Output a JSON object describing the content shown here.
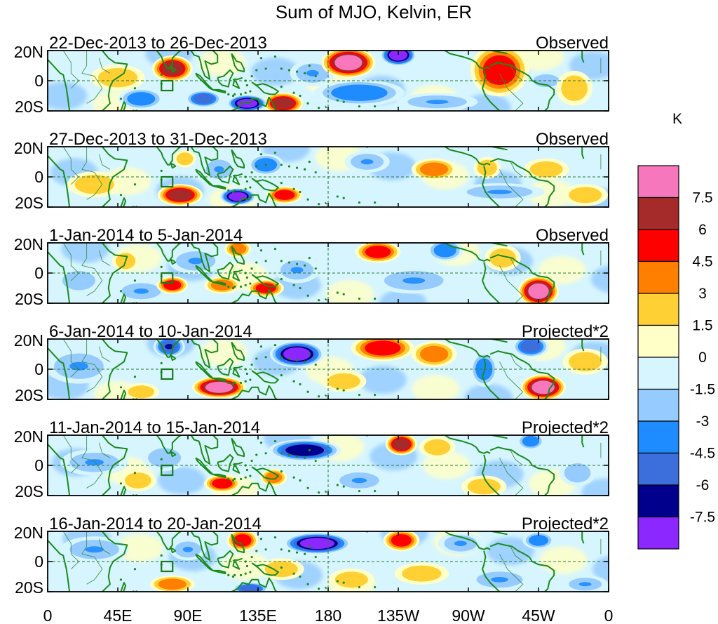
{
  "title": "Sum of MJO, Kelvin, ER",
  "colorbar": {
    "unit": "K",
    "labels": [
      "7.5",
      "6",
      "4.5",
      "3",
      "1.5",
      "0",
      "-1.5",
      "-3",
      "-4.5",
      "-6",
      "-7.5"
    ],
    "colors": [
      "#f777bd",
      "#a52a2a",
      "#ff0000",
      "#ff7f00",
      "#ffd033",
      "#ffffc8",
      "#d6f5ff",
      "#96cbff",
      "#1e8cff",
      "#3c6edc",
      "#00008c",
      "#8c28ff"
    ],
    "bounds": [
      9,
      7.5,
      6,
      4.5,
      3,
      1.5,
      0,
      -1.5,
      -3,
      -4.5,
      -6,
      -7.5,
      -9
    ]
  },
  "axes": {
    "x_ticks": [
      "0",
      "45E",
      "90E",
      "135E",
      "180",
      "135W",
      "90W",
      "45W",
      "0"
    ],
    "y_ticks": [
      "20N",
      "0",
      "20S"
    ],
    "lon_range": [
      0,
      360
    ],
    "lat_range": [
      -20,
      20
    ]
  },
  "colors": {
    "coast": "#1a8c1a",
    "border": "#3a8a3a",
    "box": "#1a7a1a"
  },
  "panels": [
    {
      "date": "22-Dec-2013 to 26-Dec-2013",
      "type": "Observed",
      "features": [
        {
          "lon": 80,
          "lat": 8,
          "rx": 9,
          "ry": 6,
          "v": 7
        },
        {
          "lon": 100,
          "lat": -12,
          "rx": 8,
          "ry": 4,
          "v": -5
        },
        {
          "lon": 128,
          "lat": -15,
          "rx": 9,
          "ry": 4,
          "v": -8
        },
        {
          "lon": 151,
          "lat": -15,
          "rx": 9,
          "ry": 5,
          "v": 7
        },
        {
          "lon": 193,
          "lat": 12,
          "rx": 12,
          "ry": 7,
          "v": 8
        },
        {
          "lon": 225,
          "lat": 17,
          "rx": 8,
          "ry": 5,
          "v": -8
        },
        {
          "lon": 200,
          "lat": -8,
          "rx": 20,
          "ry": 6,
          "v": -4
        },
        {
          "lon": 290,
          "lat": 7,
          "rx": 13,
          "ry": 12,
          "v": 6
        },
        {
          "lon": 60,
          "lat": -12,
          "rx": 10,
          "ry": 5,
          "v": -4
        },
        {
          "lon": 170,
          "lat": 5,
          "rx": 10,
          "ry": 6,
          "v": -3
        },
        {
          "lon": 250,
          "lat": -14,
          "rx": 18,
          "ry": 4,
          "v": -3
        },
        {
          "lon": 45,
          "lat": 2,
          "rx": 12,
          "ry": 6,
          "v": 2
        },
        {
          "lon": 320,
          "lat": 0,
          "rx": 8,
          "ry": 4,
          "v": -2
        },
        {
          "lon": 338,
          "lat": -5,
          "rx": 8,
          "ry": 8,
          "v": 2
        }
      ]
    },
    {
      "date": "27-Dec-2013 to 31-Dec-2013",
      "type": "Observed",
      "features": [
        {
          "lon": 85,
          "lat": -12,
          "rx": 10,
          "ry": 5,
          "v": 7
        },
        {
          "lon": 122,
          "lat": -13,
          "rx": 8,
          "ry": 4,
          "v": -8
        },
        {
          "lon": 152,
          "lat": -12,
          "rx": 8,
          "ry": 4,
          "v": 5
        },
        {
          "lon": 88,
          "lat": 12,
          "rx": 5,
          "ry": 4,
          "v": 3
        },
        {
          "lon": 110,
          "lat": 5,
          "rx": 8,
          "ry": 6,
          "v": -3
        },
        {
          "lon": 140,
          "lat": 8,
          "rx": 8,
          "ry": 5,
          "v": -4
        },
        {
          "lon": 248,
          "lat": 5,
          "rx": 10,
          "ry": 5,
          "v": 4
        },
        {
          "lon": 282,
          "lat": 6,
          "rx": 6,
          "ry": 5,
          "v": 3
        },
        {
          "lon": 205,
          "lat": 10,
          "rx": 10,
          "ry": 5,
          "v": -3
        },
        {
          "lon": 290,
          "lat": -10,
          "rx": 20,
          "ry": 4,
          "v": -3
        },
        {
          "lon": 320,
          "lat": 5,
          "rx": 10,
          "ry": 5,
          "v": 3
        },
        {
          "lon": 30,
          "lat": -5,
          "rx": 12,
          "ry": 6,
          "v": 2
        },
        {
          "lon": 345,
          "lat": -12,
          "rx": 10,
          "ry": 5,
          "v": 3
        }
      ]
    },
    {
      "date": "1-Jan-2014 to 5-Jan-2014",
      "type": "Observed",
      "features": [
        {
          "lon": 80,
          "lat": -8,
          "rx": 7,
          "ry": 4,
          "v": 5
        },
        {
          "lon": 112,
          "lat": -8,
          "rx": 8,
          "ry": 4,
          "v": 4
        },
        {
          "lon": 140,
          "lat": -10,
          "rx": 8,
          "ry": 4,
          "v": 5
        },
        {
          "lon": 122,
          "lat": 16,
          "rx": 6,
          "ry": 4,
          "v": 4
        },
        {
          "lon": 212,
          "lat": 14,
          "rx": 10,
          "ry": 5,
          "v": 5
        },
        {
          "lon": 255,
          "lat": 15,
          "rx": 8,
          "ry": 5,
          "v": -4
        },
        {
          "lon": 315,
          "lat": -12,
          "rx": 9,
          "ry": 7,
          "v": 8
        },
        {
          "lon": 50,
          "lat": 8,
          "rx": 6,
          "ry": 5,
          "v": 3
        },
        {
          "lon": 60,
          "lat": -12,
          "rx": 12,
          "ry": 5,
          "v": -3
        },
        {
          "lon": 95,
          "lat": 8,
          "rx": 12,
          "ry": 6,
          "v": -3
        },
        {
          "lon": 160,
          "lat": 2,
          "rx": 10,
          "ry": 6,
          "v": -3
        },
        {
          "lon": 235,
          "lat": -5,
          "rx": 18,
          "ry": 6,
          "v": -3
        },
        {
          "lon": 292,
          "lat": 10,
          "rx": 8,
          "ry": 6,
          "v": 3
        },
        {
          "lon": 20,
          "lat": -5,
          "rx": 10,
          "ry": 6,
          "v": -2
        }
      ]
    },
    {
      "date": "6-Jan-2014 to 10-Jan-2014",
      "type": "Projected*2",
      "features": [
        {
          "lon": 78,
          "lat": 15,
          "rx": 7,
          "ry": 5,
          "v": -6
        },
        {
          "lon": 110,
          "lat": -12,
          "rx": 12,
          "ry": 5,
          "v": 8
        },
        {
          "lon": 160,
          "lat": 10,
          "rx": 12,
          "ry": 6,
          "v": -8
        },
        {
          "lon": 215,
          "lat": 14,
          "rx": 14,
          "ry": 6,
          "v": 5
        },
        {
          "lon": 248,
          "lat": 10,
          "rx": 10,
          "ry": 6,
          "v": 4
        },
        {
          "lon": 318,
          "lat": -12,
          "rx": 10,
          "ry": 6,
          "v": 8
        },
        {
          "lon": 310,
          "lat": 15,
          "rx": 8,
          "ry": 5,
          "v": -5
        },
        {
          "lon": 20,
          "lat": 2,
          "rx": 15,
          "ry": 8,
          "v": -3
        },
        {
          "lon": 60,
          "lat": -15,
          "rx": 8,
          "ry": 4,
          "v": 3
        },
        {
          "lon": 190,
          "lat": -8,
          "rx": 10,
          "ry": 5,
          "v": 3
        },
        {
          "lon": 280,
          "lat": 0,
          "rx": 6,
          "ry": 8,
          "v": -4
        },
        {
          "lon": 345,
          "lat": 5,
          "rx": 10,
          "ry": 6,
          "v": 2
        }
      ]
    },
    {
      "date": "11-Jan-2014 to 15-Jan-2014",
      "type": "Projected*2",
      "features": [
        {
          "lon": 165,
          "lat": 10,
          "rx": 16,
          "ry": 5,
          "v": -7
        },
        {
          "lon": 112,
          "lat": -12,
          "rx": 8,
          "ry": 4,
          "v": 6
        },
        {
          "lon": 227,
          "lat": 14,
          "rx": 7,
          "ry": 5,
          "v": 7
        },
        {
          "lon": 145,
          "lat": -8,
          "rx": 6,
          "ry": 4,
          "v": 4
        },
        {
          "lon": 58,
          "lat": -10,
          "rx": 8,
          "ry": 5,
          "v": 3
        },
        {
          "lon": 310,
          "lat": 16,
          "rx": 6,
          "ry": 4,
          "v": -4
        },
        {
          "lon": 250,
          "lat": 12,
          "rx": 8,
          "ry": 5,
          "v": 3
        },
        {
          "lon": 30,
          "lat": 2,
          "rx": 15,
          "ry": 6,
          "v": -3
        },
        {
          "lon": 200,
          "lat": -10,
          "rx": 12,
          "ry": 5,
          "v": -3
        },
        {
          "lon": 280,
          "lat": -14,
          "rx": 10,
          "ry": 5,
          "v": 3
        },
        {
          "lon": 75,
          "lat": 5,
          "rx": 10,
          "ry": 6,
          "v": -2
        },
        {
          "lon": 340,
          "lat": -5,
          "rx": 8,
          "ry": 6,
          "v": -2
        }
      ]
    },
    {
      "date": "16-Jan-2014 to 20-Jan-2014",
      "type": "Projected*2",
      "features": [
        {
          "lon": 173,
          "lat": 12,
          "rx": 15,
          "ry": 5,
          "v": -8
        },
        {
          "lon": 125,
          "lat": 14,
          "rx": 7,
          "ry": 5,
          "v": 5
        },
        {
          "lon": 227,
          "lat": 14,
          "rx": 8,
          "ry": 5,
          "v": 6
        },
        {
          "lon": 130,
          "lat": -18,
          "rx": 8,
          "ry": 3,
          "v": -5
        },
        {
          "lon": 80,
          "lat": -15,
          "rx": 10,
          "ry": 4,
          "v": 4
        },
        {
          "lon": 195,
          "lat": -12,
          "rx": 10,
          "ry": 5,
          "v": 3
        },
        {
          "lon": 315,
          "lat": 14,
          "rx": 7,
          "ry": 4,
          "v": -4
        },
        {
          "lon": 265,
          "lat": 12,
          "rx": 10,
          "ry": 5,
          "v": -3
        },
        {
          "lon": 30,
          "lat": 8,
          "rx": 15,
          "ry": 6,
          "v": -3
        },
        {
          "lon": 90,
          "lat": 8,
          "rx": 8,
          "ry": 5,
          "v": -3
        },
        {
          "lon": 290,
          "lat": -12,
          "rx": 14,
          "ry": 5,
          "v": -3
        },
        {
          "lon": 345,
          "lat": -15,
          "rx": 10,
          "ry": 4,
          "v": -3
        },
        {
          "lon": 240,
          "lat": -8,
          "rx": 12,
          "ry": 5,
          "v": 2
        },
        {
          "lon": 150,
          "lat": -5,
          "rx": 10,
          "ry": 5,
          "v": 3
        }
      ]
    }
  ]
}
